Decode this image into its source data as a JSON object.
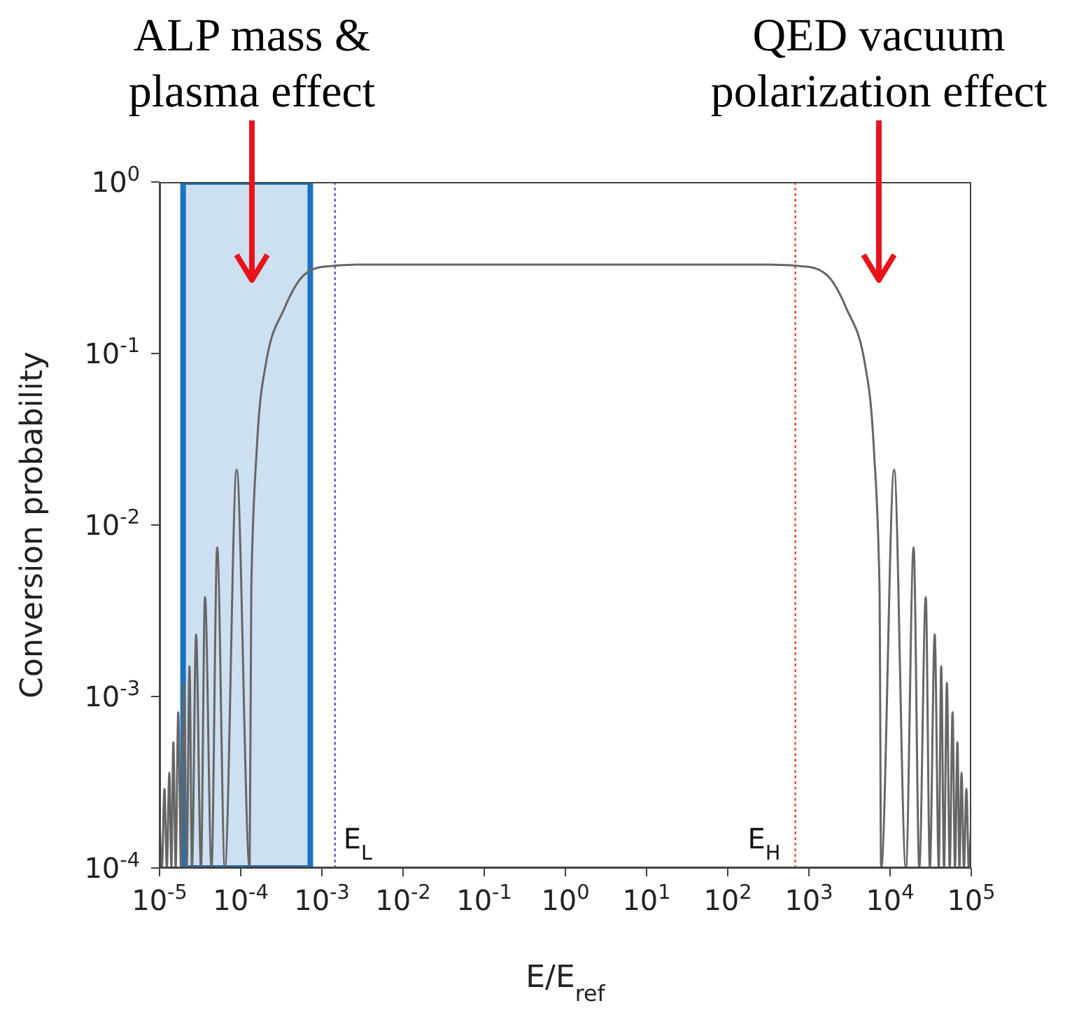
{
  "chart_data": {
    "type": "line",
    "xlabel": "E/E$_{ref}$",
    "ylabel": "Conversion probability",
    "annotations": [
      "ALP mass & plasma effect",
      "QED vacuum polarization effect"
    ],
    "log": "xy",
    "grid": false,
    "legend": false,
    "marker": "none",
    "line_style": "solid",
    "xlim": [
      1e-05,
      100000
    ],
    "ylim": [
      0.0001,
      1
    ],
    "xticks": [
      {
        "value": 1e-05,
        "label": "10$^{-5}$"
      },
      {
        "value": 0.0001,
        "label": "10$^{-4}$"
      },
      {
        "value": 0.001,
        "label": "10$^{-3}$"
      },
      {
        "value": 0.01,
        "label": "10$^{-2}$"
      },
      {
        "value": 0.1,
        "label": "10$^{-1}$"
      },
      {
        "value": 1,
        "label": "10$^{0}$"
      },
      {
        "value": 10,
        "label": "10$^{1}$"
      },
      {
        "value": 100,
        "label": "10$^{2}$"
      },
      {
        "value": 1000,
        "label": "10$^{3}$"
      },
      {
        "value": 10000,
        "label": "10$^{4}$"
      },
      {
        "value": 100000,
        "label": "10$^{5}$"
      }
    ],
    "yticks": [
      {
        "value": 0.0001,
        "label": "10$^{-4}$"
      },
      {
        "value": 0.001,
        "label": "10$^{-3}$"
      },
      {
        "value": 0.01,
        "label": "10$^{-2}$"
      },
      {
        "value": 0.1,
        "label": "10$^{-1}$"
      },
      {
        "value": 1,
        "label": "10$^{0}$"
      }
    ],
    "ref_lines": [
      {
        "axis": "x",
        "value": 0.00145,
        "label": "E$_{L}$",
        "color": "#5a5acc",
        "line_style": "dotted"
      },
      {
        "axis": "x",
        "value": 680,
        "label": "E$_{H}$",
        "color": "#e0502a",
        "line_style": "dotted"
      }
    ],
    "bands": [
      {
        "axis": "x",
        "from": 1.95e-05,
        "to": 0.00072,
        "label": null,
        "color": "#1a73c0"
      }
    ],
    "series": [
      {
        "color": "#666666",
        "x": [
          1e-05,
          1.07e-05,
          1.15e-05,
          1.23e-05,
          1.32e-05,
          1.4e-05,
          1.48e-05,
          1.58e-05,
          1.7e-05,
          1.84e-05,
          2e-05,
          2.16e-05,
          2.34e-05,
          2.51e-05,
          2.82e-05,
          3.24e-05,
          3.63e-05,
          4.37e-05,
          5.13e-05,
          6.38e-05,
          8.91e-05,
          0.000129,
          0.000135,
          0.000158,
          0.000204,
          0.000347,
          0.000589,
          0.001,
          0.00316,
          1,
          316,
          1000,
          1700,
          2884,
          4898,
          6310,
          7413,
          7762,
          11220,
          15670,
          19500,
          22910,
          27540,
          30900,
          35480,
          39810,
          42660,
          46240,
          50120,
          54330,
          58880,
          63100,
          67610,
          71610,
          75860,
          81280,
          87100,
          93330,
          100000
        ],
        "values": [
          0.0002,
          0.0001,
          0.00029,
          0.0001,
          0.00036,
          0.0001,
          0.00054,
          0.0001,
          0.00081,
          0.0001,
          0.0012,
          0.0001,
          0.0015,
          0.0001,
          0.0023,
          0.0001,
          0.0038,
          0.0001,
          0.0074,
          0.0001,
          0.021,
          0.0001,
          0.0043,
          0.028,
          0.087,
          0.184,
          0.284,
          0.32,
          0.33,
          0.33,
          0.33,
          0.32,
          0.284,
          0.184,
          0.087,
          0.028,
          0.0043,
          0.0001,
          0.021,
          0.0001,
          0.0074,
          0.0001,
          0.0038,
          0.0001,
          0.0023,
          0.0001,
          0.0015,
          0.0001,
          0.0012,
          0.0001,
          0.00081,
          0.0001,
          0.00054,
          0.0001,
          0.00036,
          0.0001,
          0.00029,
          0.0001,
          0.0002
        ]
      }
    ]
  }
}
